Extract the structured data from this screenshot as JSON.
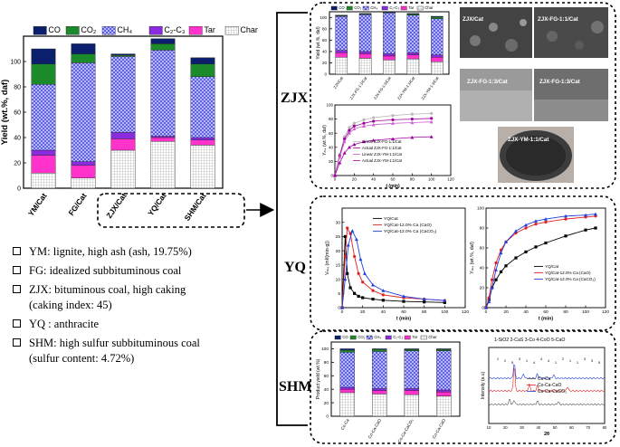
{
  "legend_components": [
    "CO",
    "CO₂",
    "CH₄",
    "C₂-C₃",
    "Tar",
    "Char"
  ],
  "colors": {
    "co": "#0b1f6e",
    "co2": "#1b8a2a",
    "ch4": "#4b4bf0",
    "c2c3": "#8a2be2",
    "tar": "#ff33cc",
    "char": "#dcdcdc",
    "ycat": "#000000",
    "cao": "#e02020",
    "caco3": "#1f3fe0",
    "linear": "#d060d0",
    "actual": "#a000a0",
    "linear_gray": "#b8b8b8"
  },
  "chart_data": [
    {
      "id": "main_bar",
      "type": "bar",
      "stacked": true,
      "ylabel": "Yield (wt.%, daf)",
      "ylim": [
        0,
        120
      ],
      "yticks": [
        0,
        20,
        40,
        60,
        80,
        100
      ],
      "categories": [
        "YM/Cat",
        "FG/Cat",
        "ZJX/Cat",
        "YQ/Cat",
        "SHM/Cat"
      ],
      "series": [
        {
          "name": "Char",
          "values": [
            12,
            8,
            30,
            37,
            34
          ]
        },
        {
          "name": "Tar",
          "values": [
            14,
            10,
            9,
            3,
            4
          ]
        },
        {
          "name": "C₂-C₃",
          "values": [
            4,
            3,
            5,
            1,
            2
          ]
        },
        {
          "name": "CH₄",
          "values": [
            52,
            78,
            60,
            68,
            48
          ]
        },
        {
          "name": "CO₂",
          "values": [
            16,
            7,
            1,
            5,
            10
          ]
        },
        {
          "name": "CO",
          "values": [
            12,
            8,
            1,
            4,
            5
          ]
        }
      ]
    },
    {
      "id": "zjx_bar",
      "type": "bar",
      "stacked": true,
      "ylabel": "Yield (wt.%, daf)",
      "ylim": [
        0,
        110
      ],
      "yticks": [
        0,
        20,
        40,
        60,
        80,
        100
      ],
      "categories": [
        "ZJX/Cat",
        "ZJX-FG-1:1/Cat",
        "ZJX-FG-1:3/Cat",
        "ZJX-YM-1:1/Cat",
        "ZJX-YM-1:3/Cat"
      ],
      "series": [
        {
          "name": "Char",
          "values": [
            30,
            28,
            25,
            27,
            22
          ]
        },
        {
          "name": "Tar",
          "values": [
            8,
            8,
            7,
            7,
            8
          ]
        },
        {
          "name": "C₂-C₃",
          "values": [
            4,
            4,
            4,
            4,
            4
          ]
        },
        {
          "name": "CH₄",
          "values": [
            60,
            65,
            72,
            66,
            64
          ]
        },
        {
          "name": "CO₂",
          "values": [
            1,
            1,
            1,
            2,
            3
          ]
        },
        {
          "name": "CO",
          "values": [
            1,
            1,
            1,
            1,
            1
          ]
        }
      ]
    },
    {
      "id": "zjx_line",
      "type": "line",
      "ylabel": "Yₘ₄ (wt.%, daf)",
      "xlabel": "t (min)",
      "xlim": [
        0,
        120
      ],
      "ylim": [
        0,
        100
      ],
      "xticks": [
        0,
        20,
        40,
        60,
        80,
        100,
        120
      ],
      "yticks": [
        0,
        20,
        40,
        60,
        80,
        100
      ],
      "series": [
        {
          "name": "Linear ZJX-FG-1:1/Cat",
          "style": "linear_gray",
          "x": [
            0,
            5,
            10,
            15,
            20,
            30,
            40,
            60,
            80,
            100
          ],
          "y": [
            0,
            30,
            55,
            68,
            74,
            79,
            82,
            85,
            87,
            88
          ]
        },
        {
          "name": "Actual ZJX-FG-1:1/Cat",
          "style": "actual",
          "x": [
            0,
            5,
            10,
            15,
            20,
            30,
            40,
            60,
            80,
            100
          ],
          "y": [
            0,
            28,
            52,
            64,
            70,
            74,
            77,
            79,
            80,
            81
          ]
        },
        {
          "name": "Linear ZJX-YM-1:1/Cat",
          "style": "linear",
          "x": [
            0,
            5,
            10,
            15,
            20,
            30,
            40,
            60,
            80,
            100
          ],
          "y": [
            0,
            26,
            48,
            60,
            66,
            70,
            72,
            74,
            75,
            76
          ]
        },
        {
          "name": "Actual ZJX-YM-1:1/Cat",
          "style": "actual",
          "x": [
            0,
            5,
            10,
            15,
            20,
            30,
            40,
            60,
            80,
            100
          ],
          "y": [
            0,
            18,
            32,
            40,
            44,
            48,
            50,
            52,
            54,
            55
          ]
        }
      ]
    },
    {
      "id": "yq_rate",
      "type": "line",
      "ylabel": "Vₘ₄ (ml/(min·g))",
      "xlabel": "t (min)",
      "xlim": [
        0,
        120
      ],
      "ylim": [
        0,
        35
      ],
      "xticks": [
        0,
        20,
        40,
        60,
        80,
        100,
        120
      ],
      "yticks": [
        0,
        5,
        10,
        15,
        20,
        25,
        30
      ],
      "series": [
        {
          "name": "YQ/Cat",
          "style": "ycat",
          "x": [
            0,
            3,
            5,
            8,
            12,
            16,
            20,
            30,
            40,
            60,
            80,
            100
          ],
          "y": [
            0,
            25,
            12,
            7,
            5,
            4,
            3.5,
            3,
            2.6,
            2.2,
            2,
            1.8
          ]
        },
        {
          "name": "YQ/Cat-12.0% Ca (CaO)",
          "style": "cao",
          "x": [
            0,
            3,
            5,
            8,
            12,
            16,
            20,
            30,
            40,
            60,
            80,
            100
          ],
          "y": [
            0,
            18,
            28,
            26,
            18,
            12,
            9,
            6,
            4.5,
            3.5,
            3,
            2.5
          ]
        },
        {
          "name": "YQ/Cat-12.0% Ca (CaCO₃)",
          "style": "caco3",
          "x": [
            0,
            3,
            6,
            10,
            14,
            18,
            22,
            30,
            40,
            60,
            80,
            100
          ],
          "y": [
            0,
            10,
            22,
            27,
            24,
            17,
            12,
            8,
            6,
            4,
            3,
            2.5
          ]
        }
      ]
    },
    {
      "id": "yq_yield",
      "type": "line",
      "ylabel": "Yₘ₄ (wt.%, daf)",
      "xlabel": "t (min)",
      "xlim": [
        0,
        120
      ],
      "ylim": [
        0,
        100
      ],
      "xticks": [
        0,
        20,
        40,
        60,
        80,
        100,
        120
      ],
      "yticks": [
        0,
        20,
        40,
        60,
        80,
        100
      ],
      "series": [
        {
          "name": "YQ/Cat",
          "style": "ycat",
          "x": [
            0,
            3,
            6,
            10,
            15,
            20,
            30,
            40,
            50,
            60,
            80,
            100,
            110
          ],
          "y": [
            0,
            8,
            20,
            28,
            36,
            42,
            50,
            56,
            61,
            65,
            72,
            78,
            80
          ]
        },
        {
          "name": "YQ/Cat-12.0% Ca (CaO)",
          "style": "cao",
          "x": [
            0,
            3,
            6,
            10,
            15,
            20,
            30,
            40,
            50,
            60,
            80,
            100,
            110
          ],
          "y": [
            0,
            10,
            28,
            45,
            58,
            66,
            75,
            80,
            84,
            86,
            89,
            91,
            92
          ]
        },
        {
          "name": "YQ/Cat-12.0% Ca (CaCO₃)",
          "style": "caco3",
          "x": [
            0,
            3,
            6,
            10,
            15,
            20,
            30,
            40,
            50,
            60,
            80,
            100,
            110
          ],
          "y": [
            0,
            6,
            20,
            38,
            55,
            66,
            77,
            83,
            87,
            89,
            92,
            93,
            94
          ]
        }
      ]
    },
    {
      "id": "shm_bar",
      "type": "bar",
      "stacked": true,
      "ylabel": "Product yield (wt.%)",
      "ylim": [
        0,
        110
      ],
      "yticks": [
        0,
        20,
        40,
        60,
        80,
        100
      ],
      "categories": [
        "Co-Ca",
        "Co-Ca-CaO",
        "Co-Ca-CaCO₃",
        "Co-Ca-CaO"
      ],
      "series": [
        {
          "name": "Char",
          "values": [
            35,
            33,
            32,
            30
          ]
        },
        {
          "name": "Tar",
          "values": [
            5,
            5,
            6,
            6
          ]
        },
        {
          "name": "C₂-C₃",
          "values": [
            3,
            3,
            3,
            3
          ]
        },
        {
          "name": "CH₄",
          "values": [
            52,
            55,
            56,
            58
          ]
        },
        {
          "name": "CO₂",
          "values": [
            3,
            3,
            2,
            2
          ]
        },
        {
          "name": "CO",
          "values": [
            2,
            1,
            1,
            1
          ]
        }
      ]
    }
  ],
  "xrd": {
    "legend": "1-SiO2   2-CaS   3-Co   4-CoO   5-CaO",
    "series": [
      "Co-Ca",
      "Co-Ca-CaO",
      "Co-Ca-CaCO₃"
    ],
    "ylabel": "Intensity (a.u)",
    "xlabel": "2θ",
    "xticks": [
      "10",
      "20",
      "30",
      "40",
      "50",
      "60",
      "70",
      "80"
    ],
    "peak_labels": [
      "1",
      "2",
      "5",
      "3",
      "1",
      "4",
      "4",
      "4",
      "1",
      "2",
      "1",
      "1",
      "3",
      "3",
      "5"
    ]
  },
  "sections": {
    "zjx": "ZJX",
    "yq": "YQ",
    "shm": "SHM"
  },
  "photos": [
    "ZJX/Cat",
    "ZJX-FG-1:1/Cat",
    "ZJX-FG-1:3/Cat",
    "ZJX-FG-1:3/Cat",
    "ZJX-YM-1:1/Cat"
  ],
  "notes": [
    {
      "line1": "YM: lignite, high ash (ash, 19.75%)",
      "line2": ""
    },
    {
      "line1": "FG: idealized subbituminous coal",
      "line2": ""
    },
    {
      "line1": "ZJX: bituminous coal, high caking",
      "line2": "(caking index: 45)"
    },
    {
      "line1": "YQ : anthracite",
      "line2": ""
    },
    {
      "line1": "SHM: high sulfur subbituminous coal",
      "line2": "(sulfur content: 4.72%)"
    }
  ]
}
